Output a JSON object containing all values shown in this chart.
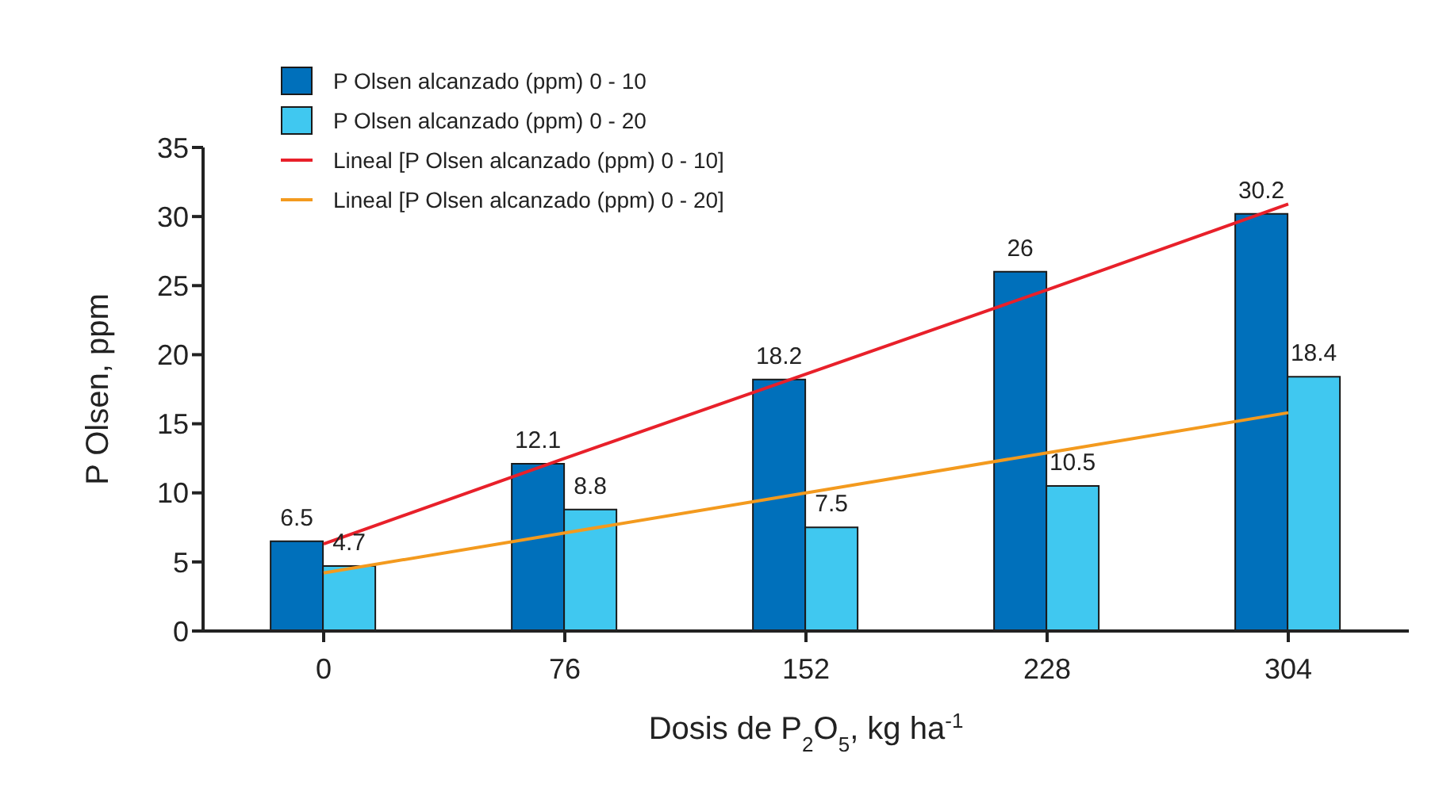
{
  "chart_data": {
    "type": "bar",
    "xlabel": "Dosis de P$_{2}$O$_{5}$, kg ha$^{-1}$",
    "ylabel": "P Olsen, ppm",
    "categories": [
      "0",
      "76",
      "152",
      "228",
      "304"
    ],
    "ylim": [
      0,
      35
    ],
    "yticks": [
      0,
      5,
      10,
      15,
      20,
      25,
      30,
      35
    ],
    "grid": false,
    "legend": "top left",
    "series": [
      {
        "name": "P Olsen alcanzado (ppm) 0 - 10",
        "color": "#0070bb",
        "values": [
          6.5,
          12.1,
          18.2,
          26,
          30.2
        ],
        "value_labels": [
          "6.5",
          "12.1",
          "18.2",
          "26",
          "30.2"
        ]
      },
      {
        "name": "P Olsen alcanzado (ppm) 0 - 20",
        "color": "#40c8f0",
        "values": [
          4.7,
          8.8,
          7.5,
          10.5,
          18.4
        ],
        "value_labels": [
          "4.7",
          "8.8",
          "7.5",
          "10.5",
          "18.4"
        ]
      },
      {
        "name": "Lineal [P Olsen alcanzado (ppm) 0 - 10]",
        "type": "line",
        "color": "#e8202a",
        "values": [
          6.3,
          12.5,
          18.6,
          24.7,
          30.9
        ]
      },
      {
        "name": "Lineal [P Olsen alcanzado (ppm) 0 - 20]",
        "type": "line",
        "color": "#f39a1e",
        "values": [
          4.2,
          7.1,
          10,
          12.9,
          15.8
        ]
      }
    ]
  }
}
